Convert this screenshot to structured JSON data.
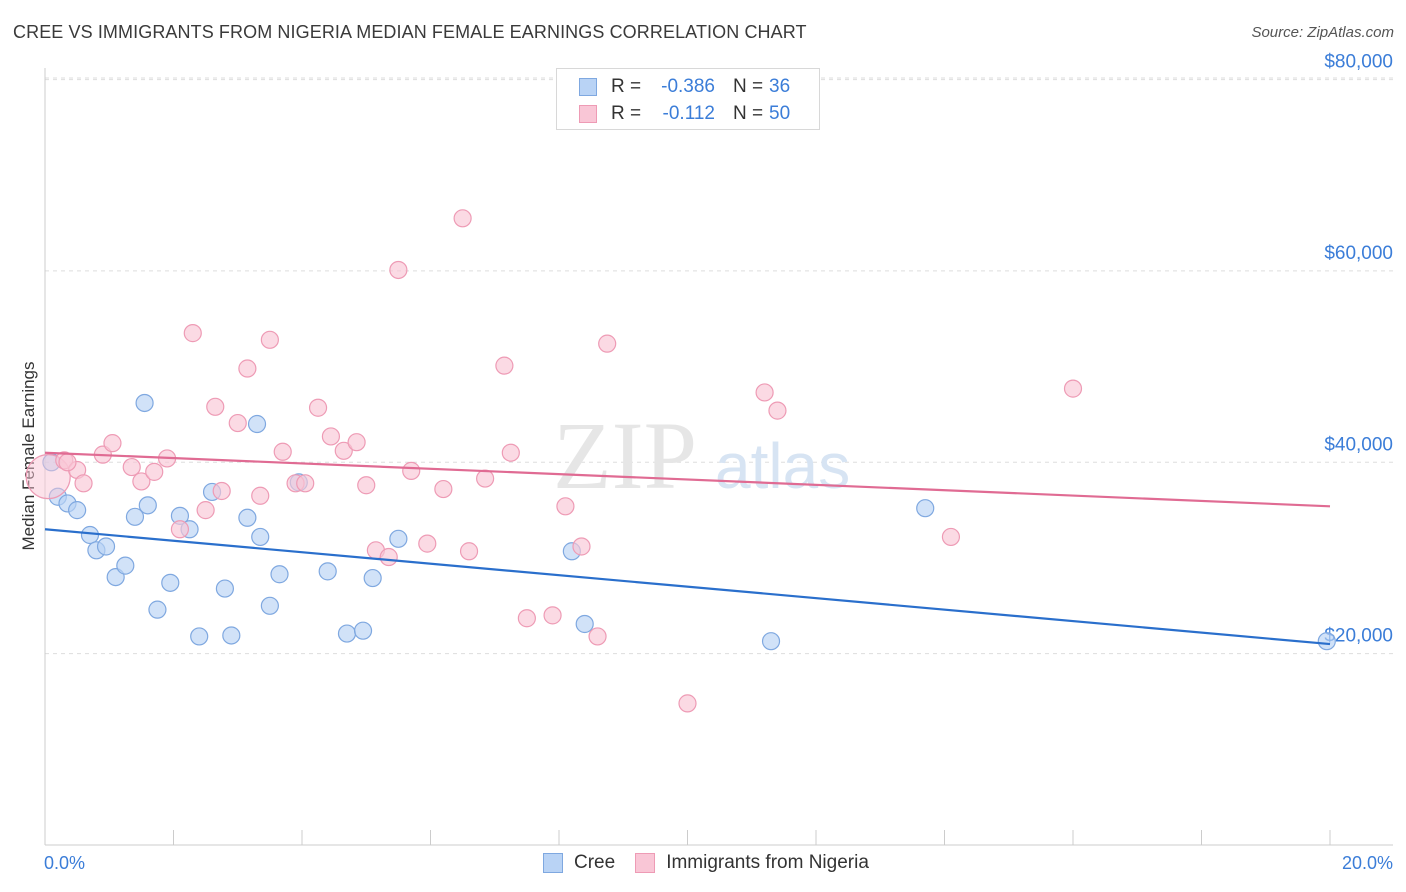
{
  "title": "CREE VS IMMIGRANTS FROM NIGERIA MEDIAN FEMALE EARNINGS CORRELATION CHART",
  "source": "Source: ZipAtlas.com",
  "watermark": {
    "zip": "ZIP",
    "atlas": "atlas"
  },
  "legend_top": {
    "rows": [
      {
        "label": "R =",
        "r_value": "-0.386",
        "n_label": "N =",
        "n_value": "36"
      },
      {
        "label": "R =",
        "r_value": "-0.112",
        "n_label": "N =",
        "n_value": "50"
      }
    ]
  },
  "legend_bottom": {
    "items": [
      "Cree",
      "Immigrants from Nigeria"
    ]
  },
  "colors": {
    "cree_fill": "#b9d3f5",
    "cree_stroke": "#7fa8e0",
    "cree_line": "#2a6fcc",
    "nigeria_fill": "#f9c6d6",
    "nigeria_stroke": "#ee9bb5",
    "nigeria_line": "#e06b93",
    "axis_label": "#3b7dd8",
    "grid": "#dddddd"
  },
  "chart_data": {
    "type": "scatter",
    "title": "CREE VS IMMIGRANTS FROM NIGERIA MEDIAN FEMALE EARNINGS CORRELATION CHART",
    "xlabel": "",
    "ylabel": "Median Female Earnings",
    "xlim": [
      0,
      20.0
    ],
    "ylim": [
      0,
      81000
    ],
    "x_tick_labels": [
      "0.0%",
      "20.0%"
    ],
    "y_ticks": [
      20000,
      40000,
      60000,
      80000
    ],
    "y_tick_labels": [
      "$20,000",
      "$40,000",
      "$60,000",
      "$80,000"
    ],
    "series": [
      {
        "name": "Cree",
        "r": -0.386,
        "n": 36,
        "trend": [
          [
            0,
            33000
          ],
          [
            20.0,
            21000
          ]
        ],
        "points": [
          [
            0.1,
            40000
          ],
          [
            0.2,
            36400
          ],
          [
            0.35,
            35700
          ],
          [
            0.5,
            35000
          ],
          [
            0.7,
            32400
          ],
          [
            0.8,
            30800
          ],
          [
            0.95,
            31200
          ],
          [
            1.1,
            28000
          ],
          [
            1.25,
            29200
          ],
          [
            1.4,
            34300
          ],
          [
            1.55,
            46200
          ],
          [
            1.6,
            35500
          ],
          [
            1.75,
            24600
          ],
          [
            1.95,
            27400
          ],
          [
            2.1,
            34400
          ],
          [
            2.25,
            33000
          ],
          [
            2.4,
            21800
          ],
          [
            2.6,
            36900
          ],
          [
            2.8,
            26800
          ],
          [
            2.9,
            21900
          ],
          [
            3.15,
            34200
          ],
          [
            3.3,
            44000
          ],
          [
            3.35,
            32200
          ],
          [
            3.5,
            25000
          ],
          [
            3.65,
            28300
          ],
          [
            3.95,
            37900
          ],
          [
            4.4,
            28600
          ],
          [
            4.7,
            22100
          ],
          [
            4.95,
            22400
          ],
          [
            5.1,
            27900
          ],
          [
            5.5,
            32000
          ],
          [
            8.2,
            30700
          ],
          [
            8.4,
            23100
          ],
          [
            11.3,
            21300
          ],
          [
            13.7,
            35200
          ],
          [
            19.95,
            21300
          ]
        ]
      },
      {
        "name": "Immigrants from Nigeria",
        "r": -0.112,
        "n": 50,
        "trend": [
          [
            0,
            41000
          ],
          [
            20.0,
            35400
          ]
        ],
        "points": [
          [
            0.05,
            38500
          ],
          [
            0.3,
            40200
          ],
          [
            0.5,
            39200
          ],
          [
            0.6,
            37800
          ],
          [
            0.9,
            40800
          ],
          [
            1.05,
            42000
          ],
          [
            1.35,
            39500
          ],
          [
            1.5,
            38000
          ],
          [
            1.7,
            39000
          ],
          [
            1.9,
            40400
          ],
          [
            2.1,
            33000
          ],
          [
            2.3,
            53500
          ],
          [
            2.5,
            35000
          ],
          [
            2.65,
            45800
          ],
          [
            2.75,
            37000
          ],
          [
            3.0,
            44100
          ],
          [
            3.15,
            49800
          ],
          [
            3.35,
            36500
          ],
          [
            3.5,
            52800
          ],
          [
            3.7,
            41100
          ],
          [
            3.9,
            37800
          ],
          [
            4.05,
            37800
          ],
          [
            4.25,
            45700
          ],
          [
            4.45,
            42700
          ],
          [
            4.65,
            41200
          ],
          [
            4.85,
            42100
          ],
          [
            5.0,
            37600
          ],
          [
            5.15,
            30800
          ],
          [
            5.35,
            30100
          ],
          [
            5.5,
            60100
          ],
          [
            5.7,
            39100
          ],
          [
            5.95,
            31500
          ],
          [
            6.2,
            37200
          ],
          [
            6.5,
            65500
          ],
          [
            6.6,
            30700
          ],
          [
            6.85,
            38300
          ],
          [
            7.15,
            50100
          ],
          [
            7.25,
            41000
          ],
          [
            7.5,
            23700
          ],
          [
            7.9,
            24000
          ],
          [
            8.1,
            35400
          ],
          [
            8.35,
            31200
          ],
          [
            8.6,
            21800
          ],
          [
            8.75,
            52400
          ],
          [
            10.0,
            14800
          ],
          [
            11.2,
            47300
          ],
          [
            11.4,
            45400
          ],
          [
            14.1,
            32200
          ],
          [
            16.0,
            47700
          ],
          [
            0.35,
            40000
          ]
        ]
      }
    ]
  }
}
